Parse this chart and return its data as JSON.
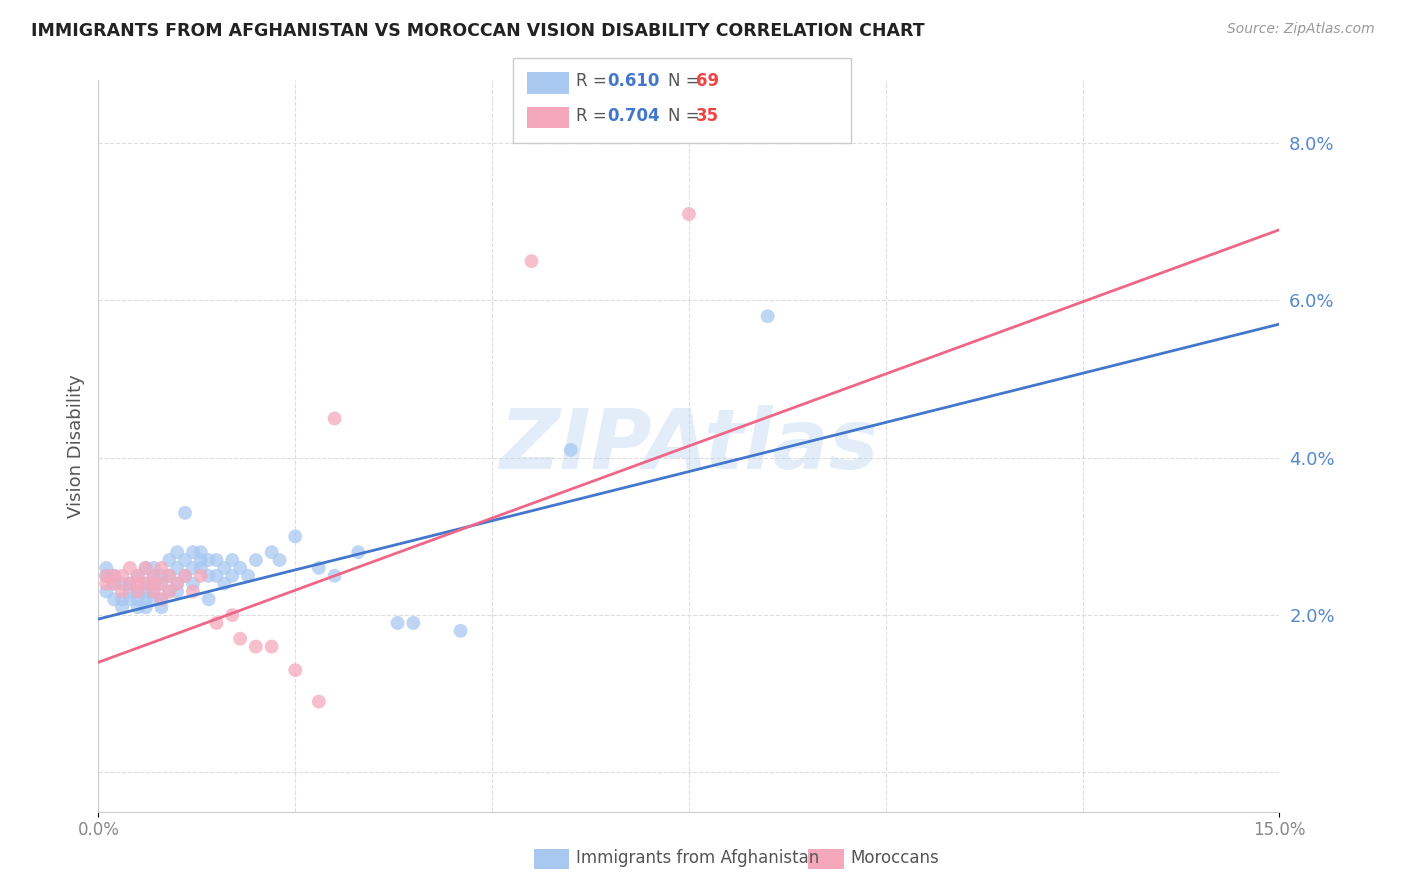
{
  "title": "IMMIGRANTS FROM AFGHANISTAN VS MOROCCAN VISION DISABILITY CORRELATION CHART",
  "source": "Source: ZipAtlas.com",
  "ylabel": "Vision Disability",
  "right_yticks": [
    0.0,
    0.02,
    0.04,
    0.06,
    0.08
  ],
  "right_yticklabels": [
    "",
    "2.0%",
    "4.0%",
    "6.0%",
    "8.0%"
  ],
  "xlim": [
    0.0,
    0.15
  ],
  "ylim": [
    -0.005,
    0.088
  ],
  "watermark": "ZIPAtlas",
  "legend_r1": "R = 0.610",
  "legend_n1": "N = 69",
  "legend_r2": "R = 0.704",
  "legend_n2": "N = 35",
  "legend_label1": "Immigrants from Afghanistan",
  "legend_label2": "Moroccans",
  "blue_color": "#a8c8f0",
  "pink_color": "#f5a8bc",
  "blue_line_color": "#4477cc",
  "pink_line_color": "#ee6688",
  "afghanistan_scatter": [
    [
      0.001,
      0.026
    ],
    [
      0.001,
      0.025
    ],
    [
      0.001,
      0.023
    ],
    [
      0.002,
      0.025
    ],
    [
      0.002,
      0.024
    ],
    [
      0.002,
      0.022
    ],
    [
      0.003,
      0.024
    ],
    [
      0.003,
      0.022
    ],
    [
      0.003,
      0.021
    ],
    [
      0.004,
      0.024
    ],
    [
      0.004,
      0.023
    ],
    [
      0.004,
      0.022
    ],
    [
      0.005,
      0.025
    ],
    [
      0.005,
      0.023
    ],
    [
      0.005,
      0.022
    ],
    [
      0.005,
      0.021
    ],
    [
      0.006,
      0.026
    ],
    [
      0.006,
      0.024
    ],
    [
      0.006,
      0.023
    ],
    [
      0.006,
      0.022
    ],
    [
      0.006,
      0.021
    ],
    [
      0.007,
      0.026
    ],
    [
      0.007,
      0.025
    ],
    [
      0.007,
      0.024
    ],
    [
      0.007,
      0.023
    ],
    [
      0.007,
      0.022
    ],
    [
      0.008,
      0.025
    ],
    [
      0.008,
      0.024
    ],
    [
      0.008,
      0.022
    ],
    [
      0.008,
      0.021
    ],
    [
      0.009,
      0.027
    ],
    [
      0.009,
      0.025
    ],
    [
      0.009,
      0.023
    ],
    [
      0.01,
      0.028
    ],
    [
      0.01,
      0.026
    ],
    [
      0.01,
      0.024
    ],
    [
      0.01,
      0.023
    ],
    [
      0.011,
      0.033
    ],
    [
      0.011,
      0.027
    ],
    [
      0.011,
      0.025
    ],
    [
      0.012,
      0.028
    ],
    [
      0.012,
      0.026
    ],
    [
      0.012,
      0.024
    ],
    [
      0.013,
      0.028
    ],
    [
      0.013,
      0.027
    ],
    [
      0.013,
      0.026
    ],
    [
      0.014,
      0.027
    ],
    [
      0.014,
      0.025
    ],
    [
      0.014,
      0.022
    ],
    [
      0.015,
      0.027
    ],
    [
      0.015,
      0.025
    ],
    [
      0.016,
      0.026
    ],
    [
      0.016,
      0.024
    ],
    [
      0.017,
      0.027
    ],
    [
      0.017,
      0.025
    ],
    [
      0.018,
      0.026
    ],
    [
      0.019,
      0.025
    ],
    [
      0.02,
      0.027
    ],
    [
      0.022,
      0.028
    ],
    [
      0.023,
      0.027
    ],
    [
      0.025,
      0.03
    ],
    [
      0.028,
      0.026
    ],
    [
      0.03,
      0.025
    ],
    [
      0.033,
      0.028
    ],
    [
      0.038,
      0.019
    ],
    [
      0.04,
      0.019
    ],
    [
      0.046,
      0.018
    ],
    [
      0.06,
      0.041
    ],
    [
      0.085,
      0.058
    ]
  ],
  "morocco_scatter": [
    [
      0.001,
      0.025
    ],
    [
      0.001,
      0.024
    ],
    [
      0.002,
      0.025
    ],
    [
      0.002,
      0.024
    ],
    [
      0.003,
      0.025
    ],
    [
      0.003,
      0.023
    ],
    [
      0.004,
      0.026
    ],
    [
      0.004,
      0.024
    ],
    [
      0.005,
      0.025
    ],
    [
      0.005,
      0.024
    ],
    [
      0.005,
      0.023
    ],
    [
      0.006,
      0.026
    ],
    [
      0.006,
      0.024
    ],
    [
      0.007,
      0.025
    ],
    [
      0.007,
      0.024
    ],
    [
      0.007,
      0.023
    ],
    [
      0.008,
      0.026
    ],
    [
      0.008,
      0.024
    ],
    [
      0.008,
      0.022
    ],
    [
      0.009,
      0.025
    ],
    [
      0.009,
      0.023
    ],
    [
      0.01,
      0.024
    ],
    [
      0.011,
      0.025
    ],
    [
      0.012,
      0.023
    ],
    [
      0.013,
      0.025
    ],
    [
      0.015,
      0.019
    ],
    [
      0.017,
      0.02
    ],
    [
      0.018,
      0.017
    ],
    [
      0.02,
      0.016
    ],
    [
      0.022,
      0.016
    ],
    [
      0.025,
      0.013
    ],
    [
      0.028,
      0.009
    ],
    [
      0.03,
      0.045
    ],
    [
      0.055,
      0.065
    ],
    [
      0.075,
      0.071
    ]
  ],
  "blue_line_x": [
    0.0,
    0.15
  ],
  "blue_line_y": [
    0.0195,
    0.057
  ],
  "pink_line_x": [
    0.0,
    0.15
  ],
  "pink_line_y": [
    0.014,
    0.069
  ],
  "grid_color": "#dddddd",
  "xtick_minor": [
    0.025,
    0.05,
    0.075,
    0.1,
    0.125
  ],
  "background_color": "#ffffff"
}
